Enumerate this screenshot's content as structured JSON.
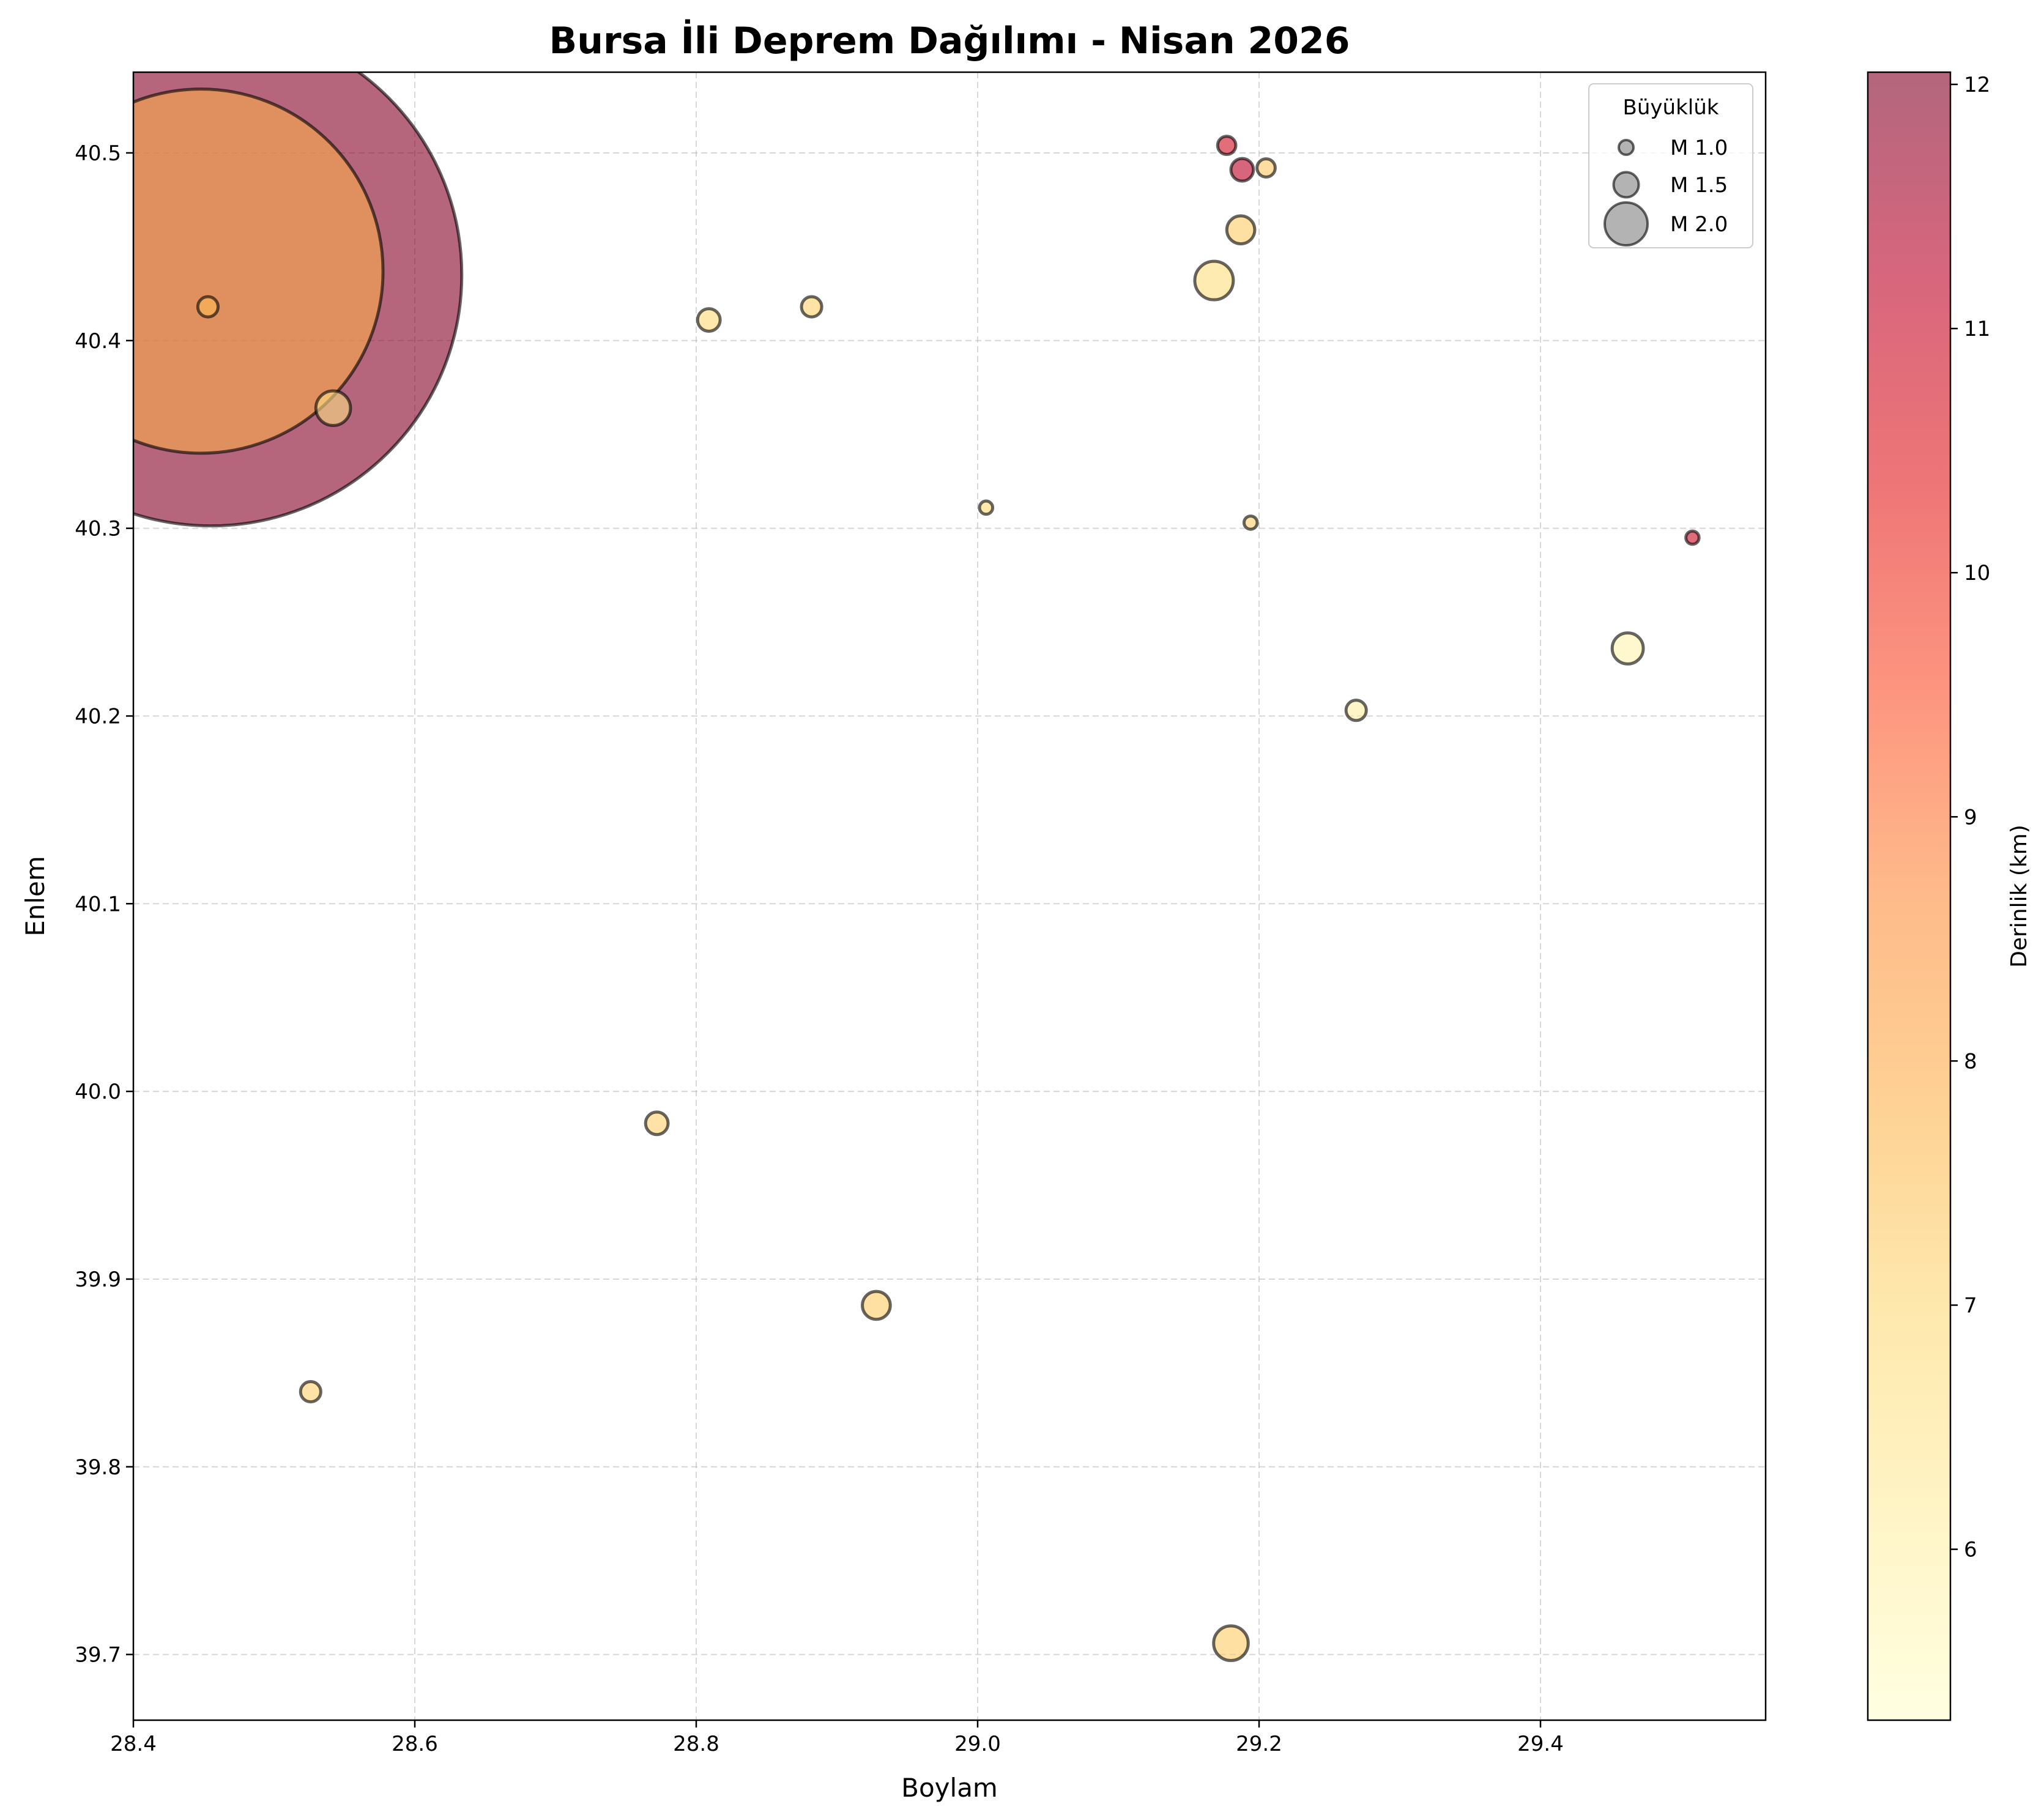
{
  "chart_data": {
    "type": "scatter",
    "title": "Bursa İli Deprem Dağılımı - Nisan 2026",
    "xlabel": "Boylam",
    "ylabel": "Enlem",
    "xlim": [
      28.4,
      29.56
    ],
    "ylim": [
      39.665,
      40.543
    ],
    "xticks": [
      28.4,
      28.6,
      28.8,
      29.0,
      29.2,
      29.4
    ],
    "xtick_labels": [
      "28.4",
      "28.6",
      "28.8",
      "29.0",
      "29.2",
      "29.4"
    ],
    "yticks": [
      39.7,
      39.8,
      39.9,
      40.0,
      40.1,
      40.2,
      40.3,
      40.4,
      40.5
    ],
    "ytick_labels": [
      "39.7",
      "39.8",
      "39.9",
      "40.0",
      "40.1",
      "40.2",
      "40.3",
      "40.4",
      "40.5"
    ],
    "grid": true,
    "size_encoding": "magnitude",
    "color_encoding": "depth_km",
    "colormap": [
      "#ffffcc",
      "#ffeda0",
      "#fed976",
      "#feb24c",
      "#fd8d3c",
      "#fc4e2a",
      "#e31a1c",
      "#bd0026",
      "#800026"
    ],
    "marker_alpha": 0.6,
    "marker_edge_color": "#000000",
    "colorbar": {
      "label": "Derinlik (km)",
      "range": [
        5.3,
        12.05
      ],
      "ticks": [
        6,
        7,
        8,
        9,
        10,
        11,
        12
      ],
      "tick_labels": [
        "6",
        "7",
        "8",
        "9",
        "10",
        "11",
        "12"
      ]
    },
    "legend": {
      "title": "Büyüklük",
      "position": "top-right",
      "entries": [
        {
          "label": "M 1.0",
          "magnitude": 1.0
        },
        {
          "label": "M 1.5",
          "magnitude": 1.5
        },
        {
          "label": "M 2.0",
          "magnitude": 2.0
        }
      ]
    },
    "points": [
      {
        "lon": 28.455,
        "lat": 40.435,
        "mag": 4.3,
        "depth": 12.0
      },
      {
        "lon": 28.448,
        "lat": 40.437,
        "mag": 4.0,
        "depth": 8.0
      },
      {
        "lon": 28.453,
        "lat": 40.418,
        "mag": 1.3,
        "depth": 7.6
      },
      {
        "lon": 28.542,
        "lat": 40.364,
        "mag": 1.8,
        "depth": 6.7
      },
      {
        "lon": 28.809,
        "lat": 40.411,
        "mag": 1.4,
        "depth": 7.0
      },
      {
        "lon": 28.882,
        "lat": 40.418,
        "mag": 1.3,
        "depth": 7.2
      },
      {
        "lon": 29.006,
        "lat": 40.311,
        "mag": 0.9,
        "depth": 7.0
      },
      {
        "lon": 29.168,
        "lat": 40.432,
        "mag": 1.9,
        "depth": 6.8
      },
      {
        "lon": 29.187,
        "lat": 40.459,
        "mag": 1.6,
        "depth": 7.3
      },
      {
        "lon": 29.177,
        "lat": 40.504,
        "mag": 1.2,
        "depth": 10.8
      },
      {
        "lon": 29.188,
        "lat": 40.491,
        "mag": 1.4,
        "depth": 11.2
      },
      {
        "lon": 29.205,
        "lat": 40.492,
        "mag": 1.2,
        "depth": 7.4
      },
      {
        "lon": 29.194,
        "lat": 40.303,
        "mag": 0.9,
        "depth": 7.2
      },
      {
        "lon": 29.508,
        "lat": 40.295,
        "mag": 0.9,
        "depth": 10.9
      },
      {
        "lon": 29.462,
        "lat": 40.236,
        "mag": 1.7,
        "depth": 5.9
      },
      {
        "lon": 29.269,
        "lat": 40.203,
        "mag": 1.3,
        "depth": 6.1
      },
      {
        "lon": 28.772,
        "lat": 39.983,
        "mag": 1.4,
        "depth": 7.2
      },
      {
        "lon": 28.928,
        "lat": 39.886,
        "mag": 1.6,
        "depth": 7.3
      },
      {
        "lon": 28.526,
        "lat": 39.84,
        "mag": 1.3,
        "depth": 7.2
      },
      {
        "lon": 29.18,
        "lat": 39.706,
        "mag": 1.8,
        "depth": 7.3
      }
    ]
  }
}
